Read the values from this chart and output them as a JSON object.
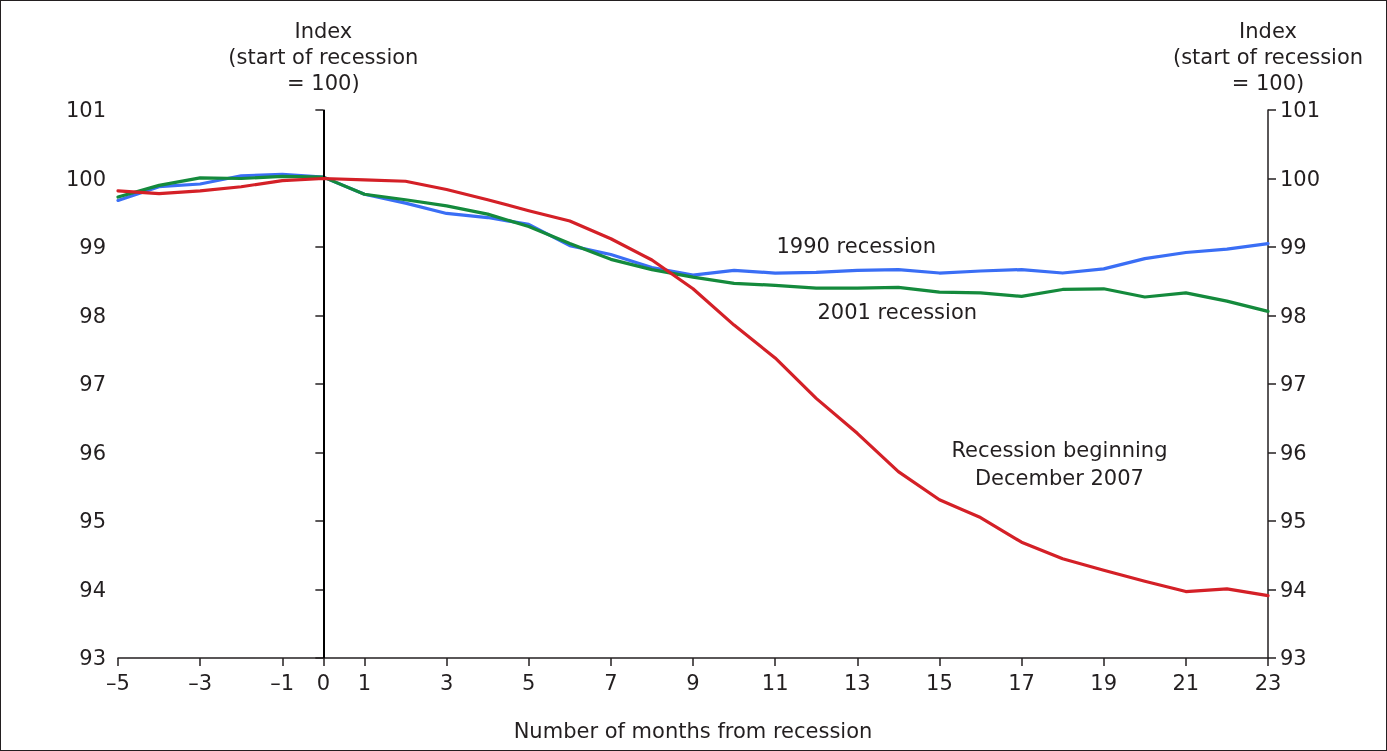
{
  "chart_data": {
    "type": "line",
    "xlabel": "Number of months from recession",
    "ylabel": "Index\n(start of recession\n= 100)",
    "y2label": "Index\n(start of recession\n= 100)",
    "x": [
      -5,
      -4,
      -3,
      -2,
      -1,
      0,
      1,
      2,
      3,
      4,
      5,
      6,
      7,
      8,
      9,
      10,
      11,
      12,
      13,
      14,
      15,
      16,
      17,
      18,
      19,
      20,
      21,
      22,
      23
    ],
    "series": [
      {
        "name": "1990 recession",
        "color": "#3a6ef5",
        "values": [
          99.68,
          99.88,
          99.92,
          100.04,
          100.06,
          100.02,
          99.77,
          99.64,
          99.49,
          99.43,
          99.33,
          99.02,
          98.89,
          98.7,
          98.59,
          98.66,
          98.62,
          98.63,
          98.66,
          98.67,
          98.62,
          98.65,
          98.67,
          98.62,
          98.68,
          98.83,
          98.92,
          98.97,
          99.05
        ]
      },
      {
        "name": "2001 recession",
        "color": "#148a3c",
        "values": [
          99.73,
          99.9,
          100.01,
          100.0,
          100.03,
          100.02,
          99.77,
          99.69,
          99.6,
          99.48,
          99.3,
          99.05,
          98.82,
          98.67,
          98.56,
          98.47,
          98.44,
          98.4,
          98.4,
          98.41,
          98.34,
          98.33,
          98.28,
          98.38,
          98.39,
          98.27,
          98.33,
          98.21,
          98.06
        ]
      },
      {
        "name": "Recession beginning\nDecember 2007",
        "color": "#d42027",
        "values": [
          99.82,
          99.78,
          99.82,
          99.88,
          99.97,
          100.0,
          99.98,
          99.96,
          99.84,
          99.69,
          99.53,
          99.38,
          99.12,
          98.81,
          98.39,
          97.86,
          97.38,
          96.79,
          96.28,
          95.72,
          95.31,
          95.05,
          94.69,
          94.45,
          94.28,
          94.12,
          93.97,
          94.01,
          93.91
        ]
      }
    ],
    "xlim": [
      -5,
      23
    ],
    "xticks": [
      {
        "value": -5,
        "label": "–5"
      },
      {
        "value": -3,
        "label": "–3"
      },
      {
        "value": -1,
        "label": "–1"
      },
      0,
      1,
      3,
      5,
      7,
      9,
      11,
      13,
      15,
      17,
      19,
      21,
      23
    ],
    "ylim": [
      93,
      101
    ],
    "yticks": [
      93,
      94,
      95,
      96,
      97,
      98,
      99,
      100,
      101
    ],
    "y2lim": [
      93,
      101
    ],
    "y2ticks": [
      93,
      94,
      95,
      96,
      97,
      98,
      99,
      100,
      101
    ],
    "ref_lines": [
      {
        "axis": "x",
        "value": 0,
        "color": "#000000",
        "line_style": "solid"
      }
    ],
    "marker": "none",
    "line_style": "solid",
    "grid": false,
    "legend": false
  }
}
